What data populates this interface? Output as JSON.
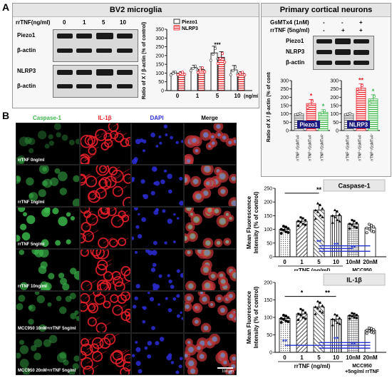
{
  "panel_a": {
    "label": "A",
    "title": "BV2 microglia",
    "dose_header": "rrTNF(ng/ml)",
    "doses": [
      "0",
      "1",
      "5",
      "10"
    ],
    "blot_rows": [
      "Piezo1",
      "β-actin",
      "NLRP3",
      "β-actin"
    ]
  },
  "panel_b": {
    "label": "B",
    "col_headers": [
      "Caspase-1",
      "IL-1β",
      "DAPI",
      "Merge"
    ],
    "row_labels": [
      "rrTNF 0ng/ml",
      "rrTNF 1ng/ml",
      "rrTNF 5ng/ml",
      "rrTNF 10ng/ml",
      "MCC950 10nM+rrTNF 5ng/ml",
      "MCC950 20nM+rrTNF 5ng/ml"
    ],
    "scale_bar": "100 μm"
  },
  "panel_c": {
    "label": "C",
    "title": "Primary cortical neurons",
    "row1_label": "GsMTx4 (1nM)",
    "row1_values": [
      "-",
      "-",
      "+"
    ],
    "row2_label": "rrTNF (5ng/ml)",
    "row2_values": [
      "-",
      "+",
      "+"
    ],
    "blot_rows": [
      "Piezo1",
      "NLRP3",
      "β-actin"
    ]
  },
  "colors": {
    "caspase": "#3ab54a",
    "il1b": "#e8202a",
    "dapi": "#2b2bd6",
    "piezo_bar": "#8c8c8c",
    "nlrp3_bar": "#f07070",
    "sig_blue": "#2233cc"
  },
  "chart_data": [
    {
      "type": "bar",
      "name": "A-quantification",
      "ylabel": "Ratio of X / β-actin (% of control)",
      "xlabel": "(ng/ml)",
      "categories": [
        "0",
        "1",
        "5",
        "10"
      ],
      "ylim": [
        0,
        350
      ],
      "yticks": [
        0,
        50,
        100,
        150,
        200,
        250,
        300,
        350
      ],
      "legend": "top-left",
      "series": [
        {
          "name": "Piezo1",
          "values": [
            100,
            130,
            215,
            118
          ],
          "errors": [
            10,
            15,
            38,
            25
          ]
        },
        {
          "name": "NLRP3",
          "values": [
            100,
            120,
            190,
            98
          ],
          "errors": [
            8,
            15,
            32,
            10
          ]
        }
      ],
      "annotations": [
        "***"
      ]
    },
    {
      "type": "bar",
      "name": "C-Piezo1",
      "ylabel": "Ratio of X / β-actin (% of control)",
      "categories": [
        "rrTNF⁻/GsMTx4⁻",
        "rrTNF⁺/GsMTx4⁻",
        "rrTNF⁺/GsMTx4⁺"
      ],
      "ylim": [
        0,
        300
      ],
      "yticks": [
        0,
        50,
        100,
        150,
        200,
        250,
        300
      ],
      "series": [
        {
          "name": "Piezo1",
          "values": [
            100,
            162,
            110
          ],
          "errors": [
            5,
            25,
            15
          ]
        }
      ],
      "annotations": [
        "*",
        "*"
      ]
    },
    {
      "type": "bar",
      "name": "C-NLRP3",
      "ylabel": "Ratio of X / β-actin (% of control)",
      "categories": [
        "rrTNF⁻/GsMTx4⁻",
        "rrTNF⁺/GsMTx4⁻",
        "rrTNF⁺/GsMTx4⁺"
      ],
      "ylim": [
        0,
        300
      ],
      "yticks": [
        0,
        50,
        100,
        150,
        200,
        250,
        300
      ],
      "series": [
        {
          "name": "NLRP3",
          "values": [
            100,
            255,
            190
          ],
          "errors": [
            5,
            25,
            25
          ]
        }
      ],
      "annotations": [
        "**",
        "*"
      ]
    },
    {
      "type": "bar",
      "name": "Caspase-1",
      "ylabel": "Mean Fluorescence Intensity (% of control)",
      "xlabel": "rrTNF (ng/ml)",
      "group2_label": "MCC950 +5ng/ml rrTNF",
      "categories": [
        "0",
        "1",
        "5",
        "10",
        "10nM",
        "20nM"
      ],
      "ylim": [
        0,
        250
      ],
      "yticks": [
        0,
        50,
        100,
        150,
        200,
        250
      ],
      "series": [
        {
          "name": "Caspase-1",
          "values": [
            100,
            130,
            170,
            150,
            120,
            105
          ],
          "errors": [
            10,
            12,
            22,
            18,
            12,
            12
          ]
        }
      ],
      "annotations": [
        "**",
        "**",
        "**",
        "**"
      ]
    },
    {
      "type": "bar",
      "name": "IL-1β",
      "ylabel": "Mean Fluorescence Intensity (% of control)",
      "xlabel": "rrTNF (ng/ml)",
      "group2_label": "MCC950 +5ng/ml rrTNF",
      "categories": [
        "0",
        "1",
        "5",
        "10",
        "10nM",
        "20nM"
      ],
      "ylim": [
        0,
        200
      ],
      "yticks": [
        0,
        50,
        100,
        150,
        200
      ],
      "series": [
        {
          "name": "IL-1β",
          "values": [
            97,
            110,
            130,
            95,
            105,
            63
          ],
          "errors": [
            8,
            12,
            14,
            12,
            6,
            6
          ]
        }
      ],
      "annotations": [
        "*",
        "**",
        "**",
        "**",
        "**"
      ]
    }
  ]
}
